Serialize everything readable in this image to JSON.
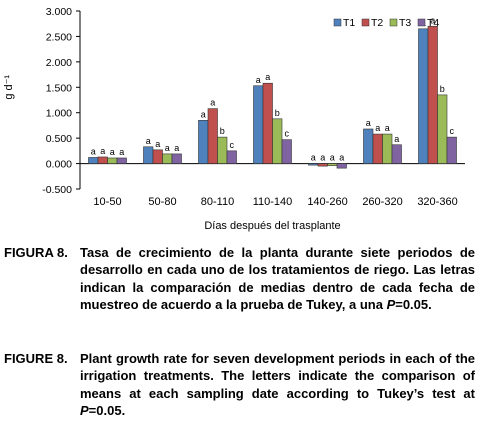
{
  "chart_data": {
    "type": "bar",
    "categories": [
      "10-50",
      "50-80",
      "80-110",
      "110-140",
      "140-260",
      "260-320",
      "320-360"
    ],
    "series": [
      {
        "name": "T1",
        "color": "#4f81bd",
        "values": [
          0.12,
          0.33,
          0.85,
          1.53,
          -0.03,
          0.68,
          2.65
        ]
      },
      {
        "name": "T2",
        "color": "#c0504d",
        "values": [
          0.13,
          0.27,
          1.08,
          1.58,
          -0.05,
          0.58,
          2.7
        ]
      },
      {
        "name": "T3",
        "color": "#9bbb59",
        "values": [
          0.11,
          0.19,
          0.52,
          0.88,
          -0.04,
          0.58,
          1.35
        ]
      },
      {
        "name": "T4",
        "color": "#8064a2",
        "values": [
          0.11,
          0.19,
          0.25,
          0.47,
          -0.09,
          0.37,
          0.52
        ]
      }
    ],
    "significance": [
      [
        "a",
        "a",
        "a",
        "a"
      ],
      [
        "a",
        "a",
        "a",
        "a"
      ],
      [
        "a",
        "a",
        "b",
        "c"
      ],
      [
        "a",
        "a",
        "b",
        "c"
      ],
      [
        "a",
        "a",
        "a",
        "a"
      ],
      [
        "a",
        "a",
        "a",
        "a"
      ],
      [
        "a",
        "a",
        "b",
        "c"
      ]
    ],
    "title": "",
    "xlabel": "Días después del trasplante",
    "ylabel": "g d⁻¹",
    "ylim": [
      -0.5,
      3.0
    ],
    "yticks": [
      "-0.500",
      "0.000",
      "0.500",
      "1.000",
      "1.500",
      "2.000",
      "2.500",
      "3.000"
    ],
    "grid": false,
    "legend_position": "top-right"
  },
  "captions": {
    "es": {
      "label": "FIGURA 8.",
      "text": "Tasa de crecimiento de la planta durante siete periodos de desarrollo en cada uno de los tratamientos de riego. Las letras indican la comparación de medias dentro de cada fecha de muestreo de acuerdo a la prueba de Tukey, a una P=0.05."
    },
    "en": {
      "label": "FIGURE 8.",
      "text": "Plant growth rate for seven development periods in each of the irrigation treatments. The letters indicate the comparison of means at each sampling date according to Tukey’s test at P=0.05."
    }
  }
}
